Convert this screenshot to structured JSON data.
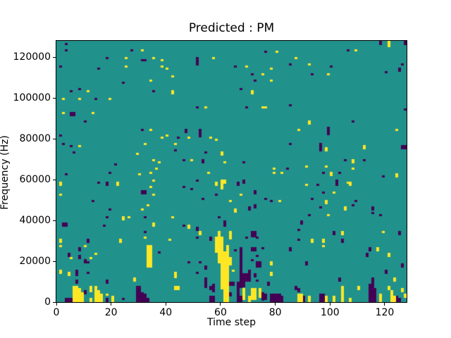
{
  "figure": {
    "title": "Predicted : PM",
    "background": "#ffffff"
  },
  "axes": {
    "xlabel": "Time step",
    "ylabel": "Frequency (Hz)",
    "x_ticks": [
      0,
      20,
      40,
      60,
      80,
      100,
      120
    ],
    "y_ticks": [
      0,
      20000,
      40000,
      60000,
      80000,
      100000,
      120000
    ],
    "x_range": [
      0,
      128
    ],
    "y_range": [
      0,
      128000
    ]
  },
  "chart_data": {
    "type": "heatmap",
    "title": "Predicted : PM",
    "xlabel": "Time step",
    "ylabel": "Frequency (Hz)",
    "grid": [
      128,
      128
    ],
    "xlim": [
      0,
      128
    ],
    "ylim": [
      0,
      128000
    ],
    "legend": "none",
    "colormap": {
      "name": "viridis-3-level",
      "mid": "#21918c",
      "dark": "#440154",
      "yellow": "#fde725"
    },
    "row_convention": "runs are [col, row_from_top, run_length]; row 0 = top bin (127-128 kHz), row 127 = bottom bin (0-1 kHz); col = time step",
    "dark_runs": [
      [
        3,
        1,
        1
      ],
      [
        3,
        4,
        1
      ],
      [
        27,
        4,
        1
      ],
      [
        18,
        8,
        1
      ],
      [
        31,
        9,
        1
      ],
      [
        32,
        9,
        1
      ],
      [
        1,
        12,
        1
      ],
      [
        15,
        13,
        1
      ],
      [
        24,
        20,
        1
      ],
      [
        5,
        24,
        1
      ],
      [
        8,
        23,
        1
      ],
      [
        35,
        24,
        1
      ],
      [
        14,
        28,
        1
      ],
      [
        5,
        35,
        2
      ],
      [
        6,
        35,
        2
      ],
      [
        10,
        39,
        1
      ],
      [
        31,
        43,
        1
      ],
      [
        1,
        46,
        1
      ],
      [
        2,
        50,
        1
      ],
      [
        5,
        51,
        1
      ],
      [
        6,
        54,
        1
      ],
      [
        21,
        60,
        1
      ],
      [
        76,
        5,
        1
      ],
      [
        51,
        8,
        4
      ],
      [
        65,
        12,
        1
      ],
      [
        71,
        16,
        1
      ],
      [
        72,
        19,
        1
      ],
      [
        67,
        23,
        1
      ],
      [
        69,
        32,
        1
      ],
      [
        51,
        32,
        1
      ],
      [
        47,
        43,
        2
      ],
      [
        52,
        43,
        4
      ],
      [
        44,
        47,
        1
      ],
      [
        43,
        53,
        1
      ],
      [
        54,
        54,
        1
      ],
      [
        46,
        58,
        1
      ],
      [
        53,
        58,
        2
      ],
      [
        68,
        59,
        1
      ],
      [
        84,
        62,
        1
      ],
      [
        118,
        0,
        2
      ],
      [
        127,
        0,
        2
      ],
      [
        106,
        4,
        1
      ],
      [
        85,
        11,
        1
      ],
      [
        100,
        12,
        1
      ],
      [
        126,
        11,
        1
      ],
      [
        125,
        13,
        2
      ],
      [
        93,
        16,
        1
      ],
      [
        120,
        15,
        1
      ],
      [
        85,
        31,
        1
      ],
      [
        127,
        33,
        1
      ],
      [
        108,
        39,
        1
      ],
      [
        99,
        42,
        4
      ],
      [
        85,
        50,
        1
      ],
      [
        96,
        50,
        4
      ],
      [
        126,
        51,
        2
      ],
      [
        127,
        51,
        2
      ],
      [
        105,
        58,
        1
      ],
      [
        112,
        58,
        1
      ],
      [
        19,
        64,
        1
      ],
      [
        3,
        65,
        1
      ],
      [
        15,
        69,
        1
      ],
      [
        18,
        69,
        2
      ],
      [
        31,
        73,
        2
      ],
      [
        32,
        73,
        2
      ],
      [
        13,
        78,
        1
      ],
      [
        19,
        82,
        1
      ],
      [
        18,
        86,
        1
      ],
      [
        32,
        86,
        1
      ],
      [
        2,
        89,
        2
      ],
      [
        3,
        89,
        2
      ],
      [
        17,
        90,
        1
      ],
      [
        32,
        93,
        1
      ],
      [
        11,
        97,
        2
      ],
      [
        8,
        101,
        2
      ],
      [
        37,
        103,
        1
      ],
      [
        4,
        104,
        2
      ],
      [
        8,
        105,
        2
      ],
      [
        10,
        107,
        2
      ],
      [
        11,
        108,
        1
      ],
      [
        7,
        112,
        3
      ],
      [
        11,
        113,
        1
      ],
      [
        7,
        117,
        2
      ],
      [
        18,
        117,
        2
      ],
      [
        10,
        122,
        2
      ],
      [
        29,
        120,
        8
      ],
      [
        30,
        120,
        8
      ],
      [
        31,
        123,
        5
      ],
      [
        32,
        124,
        4
      ],
      [
        33,
        126,
        2
      ],
      [
        24,
        126,
        1
      ],
      [
        18,
        126,
        2
      ],
      [
        3,
        126,
        2
      ],
      [
        4,
        126,
        2
      ],
      [
        5,
        126,
        2
      ],
      [
        51,
        68,
        1
      ],
      [
        46,
        71,
        1
      ],
      [
        49,
        72,
        1
      ],
      [
        66,
        69,
        2
      ],
      [
        68,
        68,
        2
      ],
      [
        58,
        75,
        1
      ],
      [
        53,
        77,
        1
      ],
      [
        72,
        73,
        2
      ],
      [
        70,
        81,
        2
      ],
      [
        72,
        80,
        2
      ],
      [
        76,
        77,
        1
      ],
      [
        78,
        78,
        1
      ],
      [
        59,
        86,
        1
      ],
      [
        61,
        88,
        3
      ],
      [
        46,
        90,
        1
      ],
      [
        51,
        91,
        2
      ],
      [
        51,
        96,
        1
      ],
      [
        56,
        96,
        2
      ],
      [
        69,
        96,
        1
      ],
      [
        71,
        93,
        3
      ],
      [
        72,
        93,
        3
      ],
      [
        73,
        96,
        1
      ],
      [
        65,
        102,
        1
      ],
      [
        67,
        101,
        20
      ],
      [
        71,
        101,
        2
      ],
      [
        72,
        101,
        2
      ],
      [
        75,
        101,
        1
      ],
      [
        73,
        105,
        1
      ],
      [
        71,
        107,
        1
      ],
      [
        73,
        108,
        3
      ],
      [
        74,
        108,
        3
      ],
      [
        70,
        112,
        6
      ],
      [
        69,
        114,
        4
      ],
      [
        68,
        114,
        7
      ],
      [
        72,
        114,
        2
      ],
      [
        73,
        117,
        1
      ],
      [
        48,
        108,
        1
      ],
      [
        52,
        108,
        1
      ],
      [
        54,
        110,
        2
      ],
      [
        51,
        113,
        1
      ],
      [
        54,
        116,
        2
      ],
      [
        54,
        118,
        3
      ],
      [
        57,
        119,
        4
      ],
      [
        56,
        120,
        2
      ],
      [
        63,
        118,
        2
      ],
      [
        64,
        118,
        2
      ],
      [
        66,
        118,
        7
      ],
      [
        77,
        118,
        2
      ],
      [
        56,
        125,
        3
      ],
      [
        57,
        125,
        3
      ],
      [
        63,
        123,
        2
      ],
      [
        66,
        125,
        3
      ],
      [
        67,
        125,
        3
      ],
      [
        75,
        123,
        4
      ],
      [
        76,
        124,
        3
      ],
      [
        97,
        64,
        1
      ],
      [
        103,
        64,
        1
      ],
      [
        119,
        66,
        1
      ],
      [
        95,
        70,
        1
      ],
      [
        102,
        68,
        3
      ],
      [
        97,
        74,
        1
      ],
      [
        93,
        77,
        1
      ],
      [
        109,
        78,
        1
      ],
      [
        96,
        81,
        1
      ],
      [
        108,
        80,
        1
      ],
      [
        115,
        81,
        2
      ],
      [
        92,
        85,
        1
      ],
      [
        115,
        84,
        1
      ],
      [
        118,
        85,
        1
      ],
      [
        89,
        88,
        2
      ],
      [
        88,
        92,
        1
      ],
      [
        101,
        93,
        2
      ],
      [
        125,
        93,
        2
      ],
      [
        88,
        97,
        1
      ],
      [
        104,
        97,
        2
      ],
      [
        85,
        101,
        2
      ],
      [
        114,
        101,
        2
      ],
      [
        113,
        104,
        2
      ],
      [
        91,
        108,
        2
      ],
      [
        126,
        109,
        2
      ],
      [
        120,
        112,
        2
      ],
      [
        103,
        116,
        2
      ],
      [
        115,
        116,
        3
      ],
      [
        87,
        120,
        2
      ],
      [
        114,
        119,
        9
      ],
      [
        115,
        119,
        9
      ],
      [
        116,
        121,
        7
      ],
      [
        96,
        124,
        4
      ],
      [
        97,
        124,
        4
      ],
      [
        90,
        125,
        3
      ],
      [
        124,
        125,
        3
      ],
      [
        125,
        126,
        2
      ],
      [
        78,
        124,
        4
      ],
      [
        79,
        124,
        4
      ],
      [
        80,
        124,
        4
      ],
      [
        81,
        124,
        4
      ],
      [
        82,
        125,
        3
      ],
      [
        88,
        121,
        2
      ]
    ],
    "yellow_runs": [
      [
        31,
        4,
        1
      ],
      [
        25,
        8,
        1
      ],
      [
        35,
        8,
        1
      ],
      [
        38,
        9,
        1
      ],
      [
        25,
        12,
        1
      ],
      [
        38,
        12,
        1
      ],
      [
        40,
        13,
        1
      ],
      [
        42,
        17,
        1
      ],
      [
        34,
        19,
        1
      ],
      [
        11,
        24,
        1
      ],
      [
        2,
        28,
        1
      ],
      [
        8,
        28,
        1
      ],
      [
        19,
        28,
        1
      ],
      [
        2,
        35,
        1
      ],
      [
        13,
        35,
        1
      ],
      [
        34,
        43,
        1
      ],
      [
        38,
        47,
        1
      ],
      [
        40,
        46,
        1
      ],
      [
        8,
        51,
        1
      ],
      [
        32,
        50,
        1
      ],
      [
        29,
        55,
        1
      ],
      [
        35,
        58,
        1
      ],
      [
        37,
        59,
        1
      ],
      [
        36,
        62,
        1
      ],
      [
        80,
        5,
        1
      ],
      [
        57,
        8,
        1
      ],
      [
        69,
        12,
        1
      ],
      [
        78,
        13,
        1
      ],
      [
        75,
        16,
        1
      ],
      [
        78,
        19,
        1
      ],
      [
        71,
        24,
        2
      ],
      [
        42,
        24,
        2
      ],
      [
        54,
        32,
        1
      ],
      [
        75,
        32,
        1
      ],
      [
        76,
        32,
        1
      ],
      [
        48,
        47,
        1
      ],
      [
        56,
        47,
        1
      ],
      [
        58,
        48,
        1
      ],
      [
        43,
        50,
        1
      ],
      [
        60,
        54,
        2
      ],
      [
        49,
        58,
        1
      ],
      [
        61,
        59,
        1
      ],
      [
        79,
        62,
        1
      ],
      [
        121,
        0,
        3
      ],
      [
        109,
        4,
        1
      ],
      [
        87,
        8,
        1
      ],
      [
        92,
        11,
        1
      ],
      [
        99,
        16,
        1
      ],
      [
        92,
        39,
        2
      ],
      [
        88,
        43,
        1
      ],
      [
        124,
        43,
        1
      ],
      [
        98,
        52,
        2
      ],
      [
        112,
        51,
        2
      ],
      [
        108,
        58,
        2
      ],
      [
        91,
        61,
        1
      ],
      [
        98,
        61,
        1
      ],
      [
        108,
        62,
        1
      ],
      [
        124,
        65,
        2
      ],
      [
        34,
        64,
        1
      ],
      [
        30,
        65,
        1
      ],
      [
        1,
        69,
        2
      ],
      [
        22,
        69,
        2
      ],
      [
        35,
        68,
        1
      ],
      [
        34,
        71,
        1
      ],
      [
        1,
        75,
        1
      ],
      [
        35,
        75,
        1
      ],
      [
        33,
        80,
        1
      ],
      [
        31,
        82,
        1
      ],
      [
        24,
        86,
        2
      ],
      [
        26,
        86,
        1
      ],
      [
        42,
        86,
        1
      ],
      [
        35,
        89,
        2
      ],
      [
        1,
        97,
        2
      ],
      [
        23,
        97,
        2
      ],
      [
        32,
        96,
        1
      ],
      [
        41,
        97,
        1
      ],
      [
        1,
        100,
        1
      ],
      [
        10,
        100,
        1
      ],
      [
        33,
        100,
        11
      ],
      [
        34,
        100,
        11
      ],
      [
        14,
        104,
        1
      ],
      [
        5,
        106,
        1
      ],
      [
        12,
        106,
        1
      ],
      [
        1,
        112,
        2
      ],
      [
        4,
        113,
        2
      ],
      [
        28,
        116,
        2
      ],
      [
        6,
        120,
        8
      ],
      [
        7,
        120,
        8
      ],
      [
        8,
        121,
        7
      ],
      [
        9,
        123,
        5
      ],
      [
        12,
        120,
        3
      ],
      [
        12,
        126,
        2
      ],
      [
        14,
        120,
        8
      ],
      [
        15,
        122,
        6
      ],
      [
        16,
        124,
        4
      ],
      [
        18,
        124,
        1
      ],
      [
        20,
        125,
        3
      ],
      [
        55,
        64,
        1
      ],
      [
        79,
        64,
        1
      ],
      [
        82,
        64,
        1
      ],
      [
        58,
        69,
        2
      ],
      [
        60,
        68,
        5
      ],
      [
        61,
        68,
        2
      ],
      [
        67,
        75,
        1
      ],
      [
        63,
        78,
        1
      ],
      [
        65,
        82,
        2
      ],
      [
        81,
        78,
        1
      ],
      [
        48,
        90,
        2
      ],
      [
        52,
        93,
        2
      ],
      [
        63,
        93,
        4
      ],
      [
        59,
        93,
        16
      ],
      [
        58,
        96,
        8
      ],
      [
        60,
        96,
        26
      ],
      [
        62,
        100,
        28
      ],
      [
        61,
        103,
        25
      ],
      [
        63,
        106,
        4
      ],
      [
        64,
        112,
        1
      ],
      [
        78,
        108,
        2
      ],
      [
        78,
        113,
        2
      ],
      [
        43,
        113,
        3
      ],
      [
        43,
        120,
        2
      ],
      [
        44,
        120,
        2
      ],
      [
        68,
        121,
        6
      ],
      [
        71,
        121,
        6
      ],
      [
        72,
        121,
        6
      ],
      [
        74,
        121,
        5
      ],
      [
        70,
        125,
        3
      ],
      [
        100,
        64,
        2
      ],
      [
        91,
        70,
        1
      ],
      [
        106,
        69,
        1
      ],
      [
        107,
        69,
        2
      ],
      [
        101,
        74,
        1
      ],
      [
        98,
        78,
        2
      ],
      [
        105,
        81,
        2
      ],
      [
        99,
        85,
        1
      ],
      [
        104,
        93,
        2
      ],
      [
        119,
        93,
        1
      ],
      [
        93,
        97,
        2
      ],
      [
        97,
        97,
        2
      ],
      [
        97,
        100,
        1
      ],
      [
        117,
        101,
        2
      ],
      [
        121,
        104,
        2
      ],
      [
        123,
        116,
        2
      ],
      [
        110,
        120,
        2
      ],
      [
        121,
        120,
        2
      ],
      [
        104,
        120,
        8
      ],
      [
        88,
        124,
        4
      ],
      [
        89,
        124,
        4
      ],
      [
        92,
        125,
        3
      ],
      [
        98,
        125,
        3
      ],
      [
        101,
        125,
        3
      ],
      [
        107,
        126,
        2
      ],
      [
        118,
        124,
        4
      ],
      [
        122,
        122,
        6
      ],
      [
        123,
        125,
        3
      ],
      [
        126,
        121,
        2
      ],
      [
        127,
        124,
        2
      ]
    ]
  }
}
